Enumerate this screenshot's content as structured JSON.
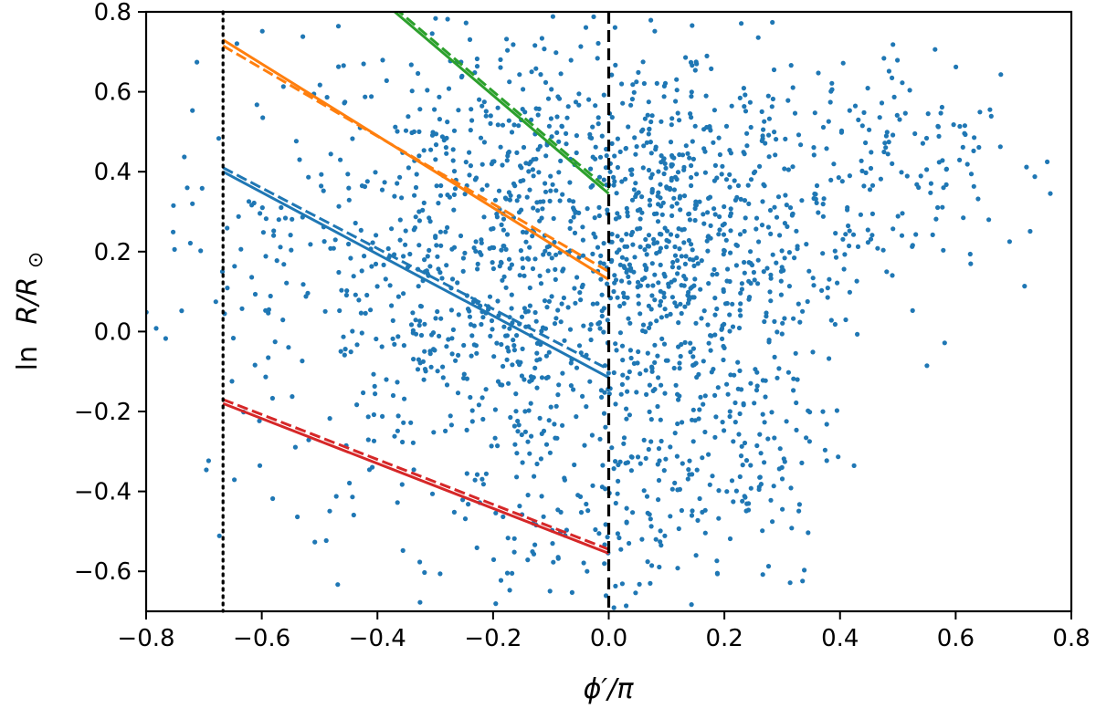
{
  "chart_data": {
    "type": "scatter",
    "title": "",
    "xlabel": "ϕ′/π",
    "ylabel_prefix": "ln",
    "ylabel_main": "R/R",
    "ylabel_sub": "⊙",
    "xlim": [
      -0.8,
      0.8
    ],
    "ylim": [
      -0.7,
      0.8
    ],
    "xticks": [
      -0.8,
      -0.6,
      -0.4,
      -0.2,
      0.0,
      0.2,
      0.4,
      0.6,
      0.8
    ],
    "yticks": [
      -0.6,
      -0.4,
      -0.2,
      0.0,
      0.2,
      0.4,
      0.6,
      0.8
    ],
    "xtick_labels": [
      "−0.8",
      "−0.6",
      "−0.4",
      "−0.2",
      "0.0",
      "0.2",
      "0.4",
      "0.6",
      "0.8"
    ],
    "ytick_labels": [
      "−0.6",
      "−0.4",
      "−0.2",
      "0.0",
      "0.2",
      "0.4",
      "0.6",
      "0.8"
    ],
    "grid": false,
    "legend": "none",
    "vlines": [
      {
        "x": -0.667,
        "style": "dotted",
        "color": "#000000"
      },
      {
        "x": 0.0,
        "style": "dashed",
        "color": "#000000"
      }
    ],
    "scatter": {
      "color": "#1f77b4",
      "clusters": [
        {
          "cx": -0.15,
          "cy": 0.3,
          "sx": 0.2,
          "sy": 0.25,
          "n": 620
        },
        {
          "cx": -0.2,
          "cy": -0.05,
          "sx": 0.2,
          "sy": 0.25,
          "n": 380
        },
        {
          "cx": 0.12,
          "cy": 0.2,
          "sx": 0.1,
          "sy": 0.25,
          "n": 380
        },
        {
          "cx": 0.3,
          "cy": 0.3,
          "sx": 0.15,
          "sy": 0.18,
          "n": 220
        },
        {
          "cx": 0.2,
          "cy": -0.25,
          "sx": 0.1,
          "sy": 0.2,
          "n": 170
        },
        {
          "cx": 0.55,
          "cy": 0.45,
          "sx": 0.12,
          "sy": 0.15,
          "n": 80
        },
        {
          "cx": -0.6,
          "cy": 0.3,
          "sx": 0.12,
          "sy": 0.3,
          "n": 60
        },
        {
          "cx": -0.05,
          "cy": -0.5,
          "sx": 0.15,
          "sy": 0.1,
          "n": 90
        }
      ]
    },
    "fit_lines": [
      {
        "color": "#2ca02c",
        "solid": [
          [
            -0.37,
            0.8
          ],
          [
            0.0,
            0.345
          ]
        ],
        "dashed": [
          [
            -0.37,
            0.81
          ],
          [
            0.0,
            0.355
          ]
        ]
      },
      {
        "color": "#ff7f0e",
        "solid": [
          [
            -0.667,
            0.73
          ],
          [
            0.0,
            0.13
          ]
        ],
        "dashed": [
          [
            -0.667,
            0.715
          ],
          [
            0.0,
            0.15
          ]
        ]
      },
      {
        "color": "#1f77b4",
        "solid": [
          [
            -0.667,
            0.4
          ],
          [
            0.0,
            -0.115
          ]
        ],
        "dashed": [
          [
            -0.667,
            0.41
          ],
          [
            0.0,
            -0.095
          ]
        ]
      },
      {
        "color": "#d62728",
        "solid": [
          [
            -0.667,
            -0.18
          ],
          [
            0.0,
            -0.555
          ]
        ],
        "dashed": [
          [
            -0.667,
            -0.17
          ],
          [
            0.0,
            -0.545
          ]
        ]
      }
    ]
  }
}
